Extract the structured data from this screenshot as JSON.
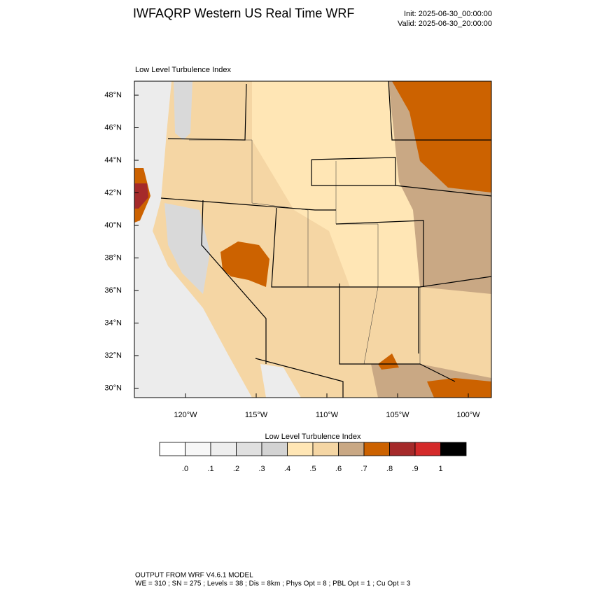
{
  "header": {
    "title": "IWFAQRP Western US Real Time WRF",
    "init": "Init: 2025-06-30_00:00:00",
    "valid": "Valid: 2025-06-30_20:00:00"
  },
  "map": {
    "subtitle": "Low Level Turbulence Index",
    "lat_labels": [
      "48°N",
      "46°N",
      "44°N",
      "42°N",
      "40°N",
      "38°N",
      "36°N",
      "34°N",
      "32°N",
      "30°N"
    ],
    "lon_labels": [
      "120°W",
      "115°W",
      "110°W",
      "105°W",
      "100°W"
    ]
  },
  "colorbar": {
    "title": "Low Level Turbulence Index",
    "colors": [
      "#ffffff",
      "#f7f7f7",
      "#eeeeee",
      "#e0e0e0",
      "#d3d3d3",
      "#ffe6b5",
      "#f5d6a4",
      "#c9a884",
      "#cc6200",
      "#a52a2a",
      "#d42a2a",
      "#000000"
    ],
    "labels": [
      ".0",
      ".1",
      ".2",
      ".3",
      ".4",
      ".5",
      ".6",
      ".7",
      ".8",
      ".9",
      "1"
    ]
  },
  "footer": {
    "lines": [
      "OUTPUT FROM WRF V4.6.1 MODEL",
      "WE = 310 ; SN = 275 ; Levels = 38 ; Dis = 8km ; Phys Opt = 8 ; PBL Opt = 1 ; Cu Opt = 3"
    ]
  }
}
